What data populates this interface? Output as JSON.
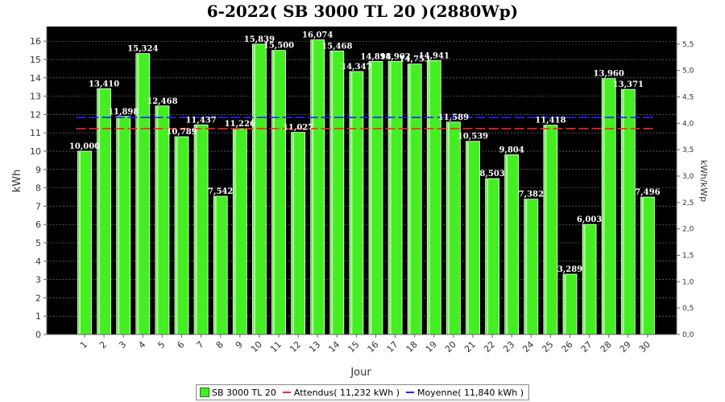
{
  "chart_data": {
    "type": "bar",
    "title": "6-2022( SB 3000 TL 20 )(2880Wp)",
    "xlabel": "Jour",
    "ylabel": "kWh",
    "y2label": "kWh/kWp",
    "ylim": [
      0,
      16.8
    ],
    "y2lim": [
      0,
      5.833
    ],
    "yticks": [
      0,
      1,
      2,
      3,
      4,
      5,
      6,
      7,
      8,
      9,
      10,
      11,
      12,
      13,
      14,
      15,
      16
    ],
    "y2ticks": [
      "0,0",
      "0,5",
      "1,0",
      "1,5",
      "2,0",
      "2,5",
      "3,0",
      "3,5",
      "4,0",
      "4,5",
      "5,0",
      "5,5"
    ],
    "categories": [
      "1",
      "2",
      "3",
      "4",
      "5",
      "6",
      "7",
      "8",
      "9",
      "10",
      "11",
      "12",
      "13",
      "14",
      "15",
      "16",
      "17",
      "18",
      "19",
      "20",
      "21",
      "22",
      "23",
      "24",
      "25",
      "26",
      "27",
      "28",
      "29",
      "30"
    ],
    "series": [
      {
        "name": "SB 3000 TL 20",
        "color": "#44ee22",
        "values": [
          10.0,
          13.41,
          11.898,
          15.324,
          12.468,
          10.789,
          11.437,
          7.542,
          11.226,
          15.839,
          15.5,
          11.027,
          16.074,
          15.468,
          14.347,
          14.898,
          14.902,
          14.753,
          14.941,
          11.589,
          10.539,
          8.503,
          9.804,
          7.382,
          11.418,
          3.289,
          6.003,
          13.96,
          13.371,
          7.496
        ],
        "labels": [
          "10,000",
          "13,410",
          "11,898",
          "15,324",
          "12,468",
          "10,789",
          "11,437",
          "7,542",
          "11,226",
          "15,839",
          "15,500",
          "11,027",
          "16,074",
          "15,468",
          "14,347",
          "14,898",
          "14,902",
          "14,753",
          "14,941",
          "11,589",
          "10,539",
          "8,503",
          "9,804",
          "7,382",
          "11,418",
          "3,289",
          "6,003",
          "13,960",
          "13,371",
          "7,496"
        ]
      }
    ],
    "reference_lines": [
      {
        "name": "Attendus( 11,232 kWh )",
        "value": 11.232,
        "color": "#ff2222",
        "style": "dashed"
      },
      {
        "name": "Moyenne( 11,840 kWh )",
        "value": 11.84,
        "color": "#2222ff",
        "style": "dashed"
      }
    ],
    "grid": true,
    "legend": "bottom-center",
    "plot_background": "#000000"
  }
}
